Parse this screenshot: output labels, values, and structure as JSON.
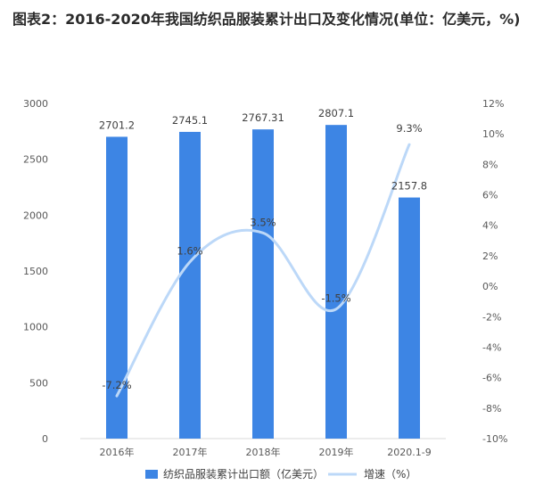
{
  "title": "图表2：2016-2020年我国纺织品服装累计出口及变化情况(单位：亿美元，%)",
  "colors": {
    "bar": "#3d85e4",
    "line": "#bcd8f8",
    "axis": "#d9d9d9",
    "text": "#595959"
  },
  "chart_data": {
    "type": "bar",
    "categories": [
      "2016年",
      "2017年",
      "2018年",
      "2019年",
      "2020.1-9"
    ],
    "series": [
      {
        "name": "纺织品服装累计出口额（亿美元）",
        "type": "bar",
        "axis": "left",
        "values": [
          2701.2,
          2745.1,
          2767.31,
          2807.1,
          2157.8
        ],
        "labels": [
          "2701.2",
          "2745.1",
          "2767.31",
          "2807.1",
          "2157.8"
        ]
      },
      {
        "name": "增速（%）",
        "type": "line",
        "smooth": true,
        "axis": "right",
        "values": [
          -7.2,
          1.6,
          3.5,
          -1.5,
          9.3
        ],
        "labels": [
          "-7.2%",
          "1.6%",
          "3.5%",
          "-1.5%",
          "9.3%"
        ]
      }
    ],
    "y_left": {
      "ylim": [
        0,
        3000
      ],
      "ticks": [
        "0",
        "500",
        "1000",
        "1500",
        "2000",
        "2500",
        "3000"
      ]
    },
    "y_right": {
      "ylim": [
        -10,
        12
      ],
      "ticks": [
        "-10%",
        "-8%",
        "-6%",
        "-4%",
        "-2%",
        "0%",
        "2%",
        "4%",
        "6%",
        "8%",
        "10%",
        "12%"
      ]
    },
    "grid": false,
    "legend": "bottom"
  }
}
